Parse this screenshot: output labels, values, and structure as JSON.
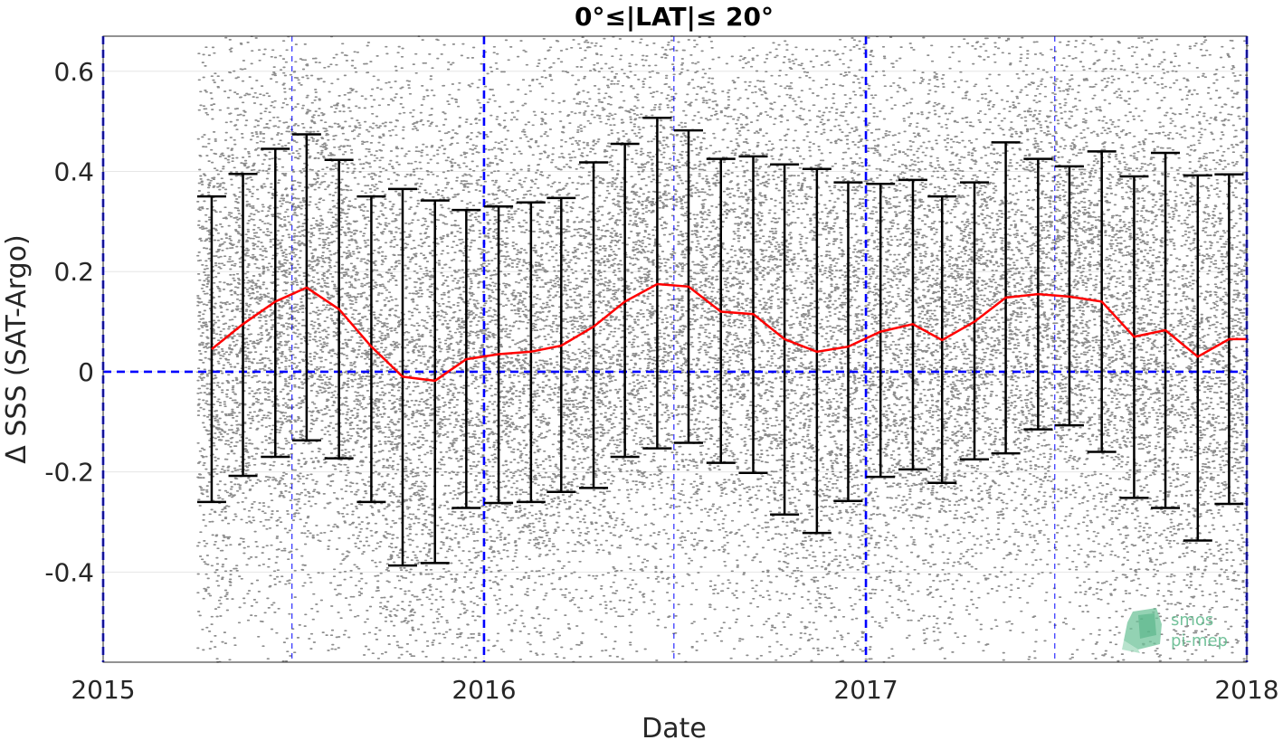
{
  "chart_data": {
    "type": "scatter",
    "title": "0°≤|LAT|≤ 20°",
    "xlabel": "Date",
    "ylabel": "Δ SSS (SAT-Argo)",
    "xlim": [
      "2015-01-01",
      "2018-01-01"
    ],
    "ylim": [
      -0.58,
      0.67
    ],
    "x_ticks": [
      "2015",
      "2016",
      "2017",
      "2018"
    ],
    "y_ticks": [
      -0.4,
      -0.2,
      0,
      0.2,
      0.4,
      0.6
    ],
    "y_tick_labels": [
      "-0.4",
      "-0.2",
      "0",
      "0.2",
      "0.4",
      "0.6"
    ],
    "grid": true,
    "colors": {
      "scatter": "#808080",
      "mean_line": "#ff0000",
      "errorbar": "#000000",
      "reference": "#0000ff"
    },
    "scatter_extent": {
      "x": [
        "2015-04-01",
        "2018-01-01"
      ],
      "y": [
        -0.58,
        0.67
      ]
    },
    "reference_lines": {
      "horizontal_y": 0,
      "vertical_dates": [
        "2015-01-01",
        "2015-07-01",
        "2016-01-01",
        "2016-07-01",
        "2017-01-01",
        "2017-07-01",
        "2018-01-01"
      ]
    },
    "series": [
      {
        "type": "line_errorbar",
        "x": [
          "2015-04-15",
          "2015-05-15",
          "2015-06-15",
          "2015-07-15",
          "2015-08-15",
          "2015-09-15",
          "2015-10-15",
          "2015-11-15",
          "2015-12-15",
          "2016-01-15",
          "2016-02-15",
          "2016-03-15",
          "2016-04-15",
          "2016-05-15",
          "2016-06-15",
          "2016-07-15",
          "2016-08-15",
          "2016-09-15",
          "2016-10-15",
          "2016-11-15",
          "2016-12-15",
          "2017-01-15",
          "2017-02-15",
          "2017-03-15",
          "2017-04-15",
          "2017-05-15",
          "2017-06-15",
          "2017-07-15",
          "2017-08-15",
          "2017-09-15",
          "2017-10-15",
          "2017-11-15",
          "2017-12-15"
        ],
        "mean": [
          0.045,
          0.095,
          0.14,
          0.168,
          0.125,
          0.05,
          -0.01,
          -0.018,
          0.025,
          0.035,
          0.04,
          0.052,
          0.09,
          0.14,
          0.175,
          0.17,
          0.12,
          0.115,
          0.065,
          0.04,
          0.05,
          0.08,
          0.095,
          0.063,
          0.1,
          0.148,
          0.155,
          0.15,
          0.14,
          0.07,
          0.083,
          0.03,
          0.065
        ],
        "upper": [
          0.35,
          0.395,
          0.445,
          0.474,
          0.423,
          0.35,
          0.365,
          0.342,
          0.323,
          0.33,
          0.338,
          0.347,
          0.418,
          0.455,
          0.507,
          0.482,
          0.425,
          0.43,
          0.414,
          0.405,
          0.378,
          0.375,
          0.383,
          0.35,
          0.378,
          0.458,
          0.425,
          0.41,
          0.44,
          0.39,
          0.437,
          0.392,
          0.394
        ],
        "lower": [
          -0.26,
          -0.208,
          -0.17,
          -0.137,
          -0.173,
          -0.26,
          -0.387,
          -0.382,
          -0.272,
          -0.262,
          -0.26,
          -0.24,
          -0.232,
          -0.17,
          -0.153,
          -0.142,
          -0.182,
          -0.202,
          -0.285,
          -0.322,
          -0.258,
          -0.21,
          -0.195,
          -0.222,
          -0.175,
          -0.163,
          -0.115,
          -0.107,
          -0.16,
          -0.252,
          -0.272,
          -0.337,
          -0.264
        ]
      }
    ]
  },
  "logo": {
    "line1": "smos",
    "line2": "pi-mep"
  }
}
